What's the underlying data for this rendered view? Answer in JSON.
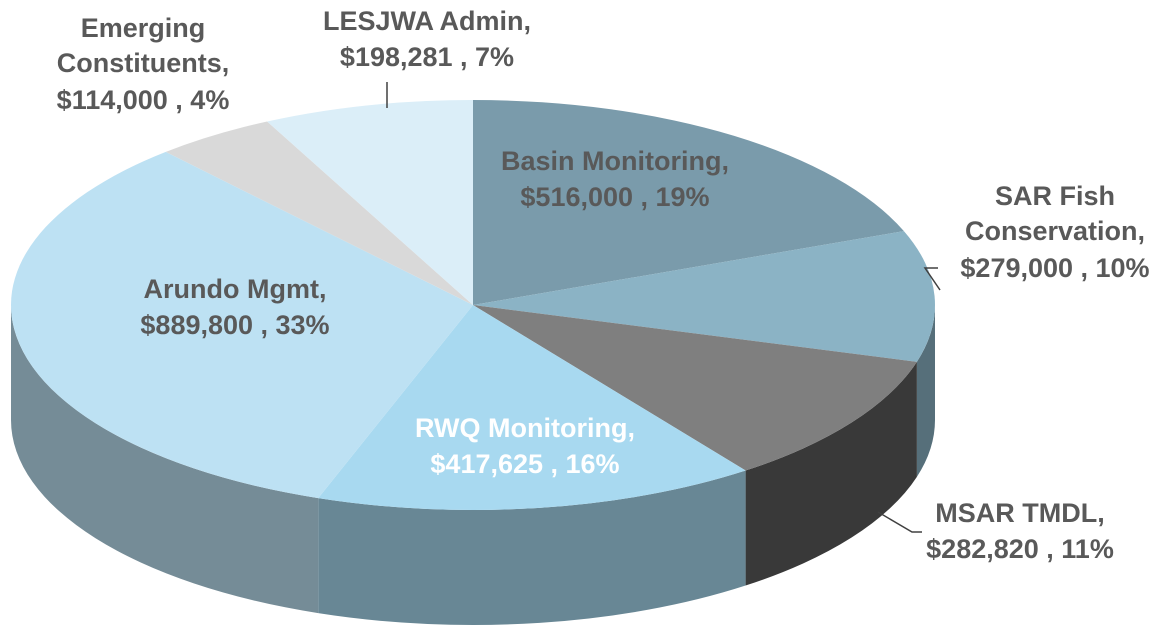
{
  "chart_data": {
    "type": "pie",
    "categories": [
      "Basin Monitoring,",
      "SAR Fish Conservation,",
      "MSAR TMDL,",
      "RWQ Monitoring,",
      "Arundo Mgmt,",
      "Emerging Constituents,",
      "LESJWA Admin,"
    ],
    "values": [
      516000,
      279000,
      282820,
      417625,
      889800,
      114000,
      198281
    ],
    "value_labels": [
      "$516,000 , 19%",
      "$279,000 , 10%",
      "$282,820 , 11%",
      "$417,625 , 16%",
      "$889,800 , 33%",
      "$114,000 , 4%",
      "$198,281 , 7%"
    ],
    "colors": [
      "#7a9bab",
      "#8bb3c5",
      "#7f7f7f",
      "#a8d9f0",
      "#bde1f3",
      "#d9d9d9",
      "#dbeef8"
    ]
  }
}
